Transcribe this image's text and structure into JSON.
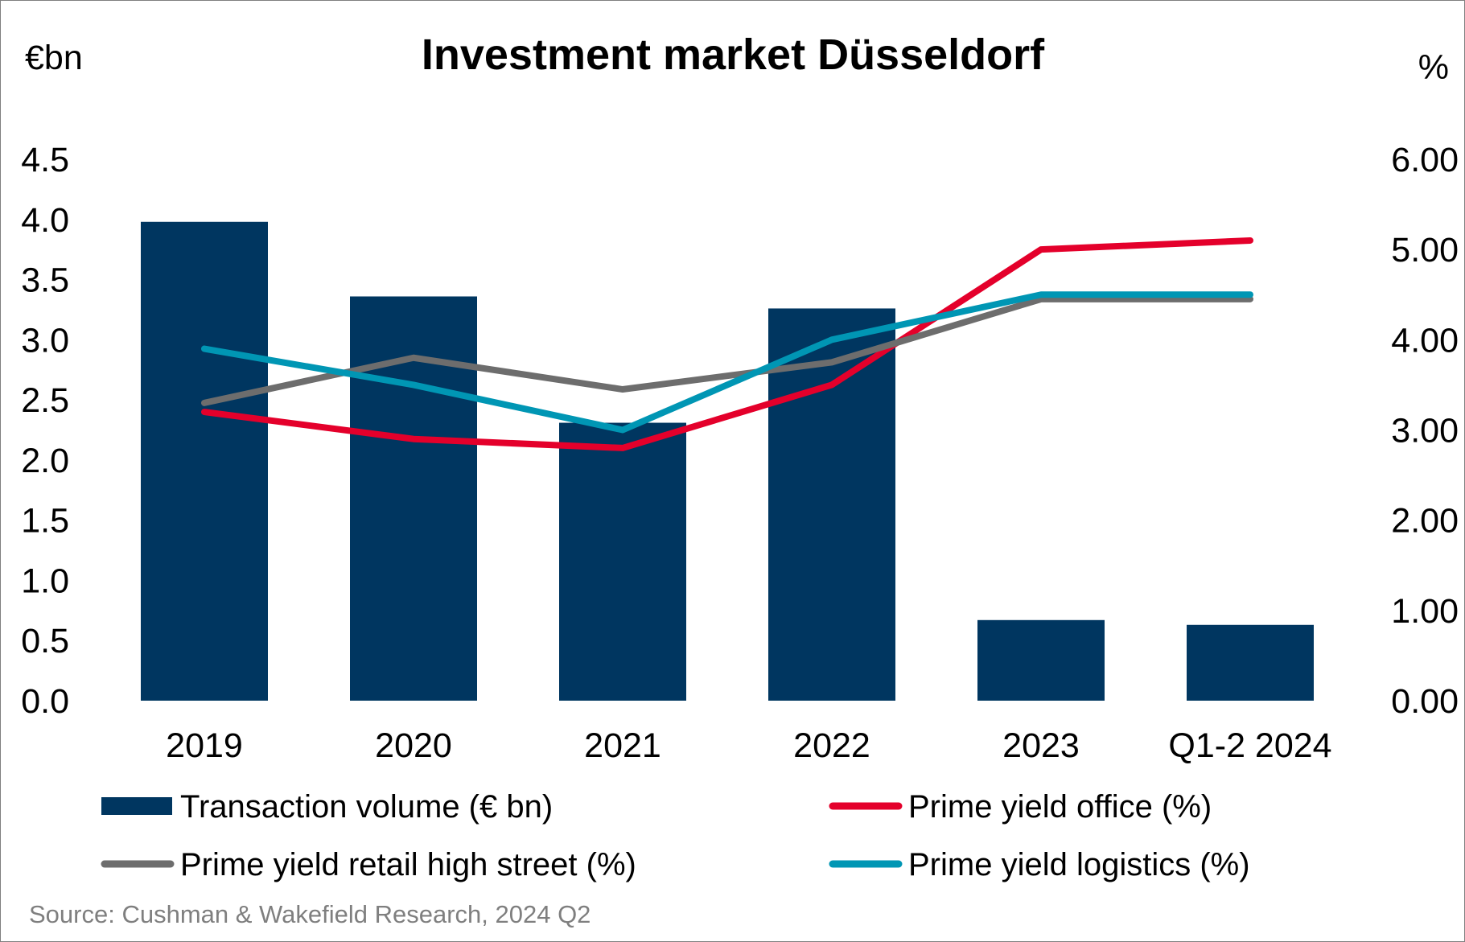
{
  "chart_data": {
    "type": "bar",
    "title": "Investment market Düsseldorf",
    "y_left_unit": "€bn",
    "y_right_unit": "%",
    "categories": [
      "2019",
      "2020",
      "2021",
      "2022",
      "2023",
      "Q1-2 2024"
    ],
    "y_left_ticks": [
      "0.0",
      "0.5",
      "1.0",
      "1.5",
      "2.0",
      "2.5",
      "3.0",
      "3.5",
      "4.0",
      "4.5"
    ],
    "y_right_ticks": [
      "0.00",
      "1.00",
      "2.00",
      "3.00",
      "4.00",
      "5.00",
      "6.00"
    ],
    "ylim_left": [
      0,
      4.5
    ],
    "ylim_right": [
      0,
      6
    ],
    "bar_series": {
      "name": "Transaction volume (€ bn)",
      "color": "#003660",
      "axis": "left",
      "values": [
        3.98,
        3.36,
        2.31,
        3.26,
        0.67,
        0.63
      ]
    },
    "line_series": [
      {
        "name": "Prime yield office (%)",
        "color": "#e4002b",
        "axis": "right",
        "values": [
          3.2,
          2.9,
          2.8,
          3.5,
          5.0,
          5.1
        ]
      },
      {
        "name": "Prime yield retail high street (%)",
        "color": "#6d6d6d",
        "axis": "right",
        "values": [
          3.3,
          3.8,
          3.45,
          3.75,
          4.45,
          4.45
        ]
      },
      {
        "name": "Prime yield logistics (%)",
        "color": "#0096b4",
        "axis": "right",
        "values": [
          3.9,
          3.5,
          3.0,
          4.0,
          4.5,
          4.5
        ]
      }
    ],
    "legend_position": "bottom",
    "grid": false,
    "source": "Source: Cushman & Wakefield Research, 2024 Q2"
  }
}
